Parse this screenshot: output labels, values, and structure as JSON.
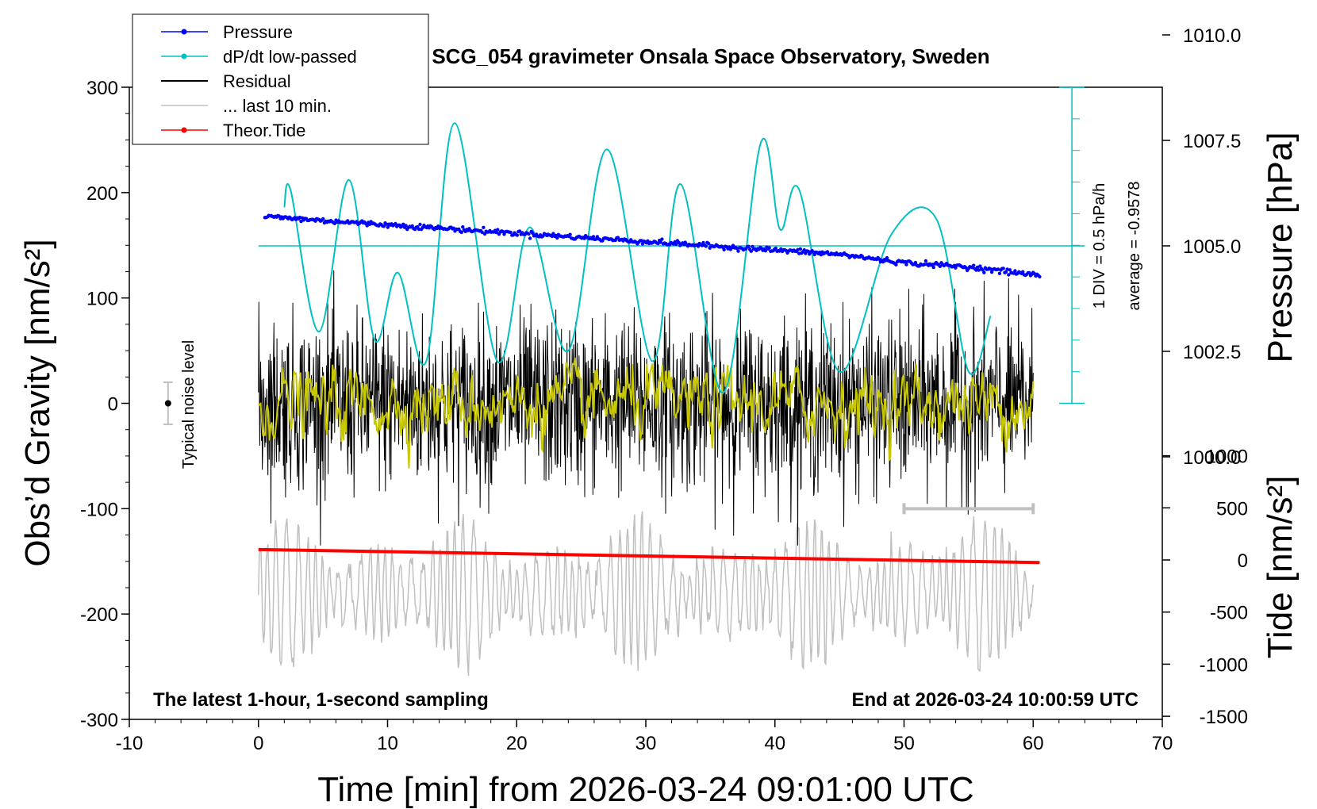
{
  "chart_data": {
    "type": "line",
    "title": "SCG_054 gravimeter Onsala Space Observatory, Sweden",
    "xlabel": "Time [min] from 2026-03-24 09:01:00 UTC",
    "ylabel_left": "Obs’d Gravity [nm/s²]",
    "ylabel_right_top": "Pressure [hPa]",
    "ylabel_right_bottom": "Tide [nm/s²]",
    "xlim": [
      -10,
      70
    ],
    "ylim_left": [
      -300,
      300
    ],
    "x_ticks": [
      "-10",
      "0",
      "10",
      "20",
      "30",
      "40",
      "50",
      "60",
      "70"
    ],
    "y_ticks_left": [
      "300",
      "200",
      "100",
      "0",
      "-100",
      "-200",
      "-300"
    ],
    "pressure_ticks": [
      "1010.0",
      "1007.5",
      "1005.0",
      "1002.5",
      "1000.0"
    ],
    "tide_ticks": [
      "1000",
      "500",
      "0",
      "-500",
      "-1000",
      "-1500"
    ],
    "legend": [
      {
        "label": "Pressure",
        "color": "#0000ff",
        "marker": true
      },
      {
        "label": "dP/dt low-passed",
        "color": "#00c0c0",
        "marker": true
      },
      {
        "label": "Residual",
        "color": "#000000",
        "marker": false
      },
      {
        "label": "... last 10 min.",
        "color": "#c0c0c0",
        "marker": false
      },
      {
        "label": "Theor.Tide",
        "color": "#ff0000",
        "marker": true
      }
    ],
    "legend_position": "top-left",
    "annotations": {
      "bottom_left": "The latest 1-hour, 1-second sampling",
      "bottom_right": "End at 2026-03-24 10:00:59 UTC",
      "noise": "Typical noise level",
      "div": "1 DIV = 0.5 hPa/h",
      "average": "average = -0.9578"
    },
    "pressure_hpa": {
      "x": [
        0.5,
        5,
        10,
        15,
        20,
        25,
        30,
        35,
        40,
        45,
        50,
        55,
        60.5
      ],
      "y": [
        1005.7,
        1005.6,
        1005.5,
        1005.4,
        1005.3,
        1005.2,
        1005.1,
        1005.0,
        1004.9,
        1004.8,
        1004.6,
        1004.5,
        1004.3
      ]
    },
    "dpdt_lowpassed_gravity_units": {
      "x": [
        2,
        2.5,
        4.7,
        7,
        9,
        10.8,
        13,
        15.2,
        18.5,
        21,
        24,
        27,
        30.5,
        32.7,
        36,
        38.9,
        40.4,
        41.9,
        45,
        49,
        52.5,
        55,
        56.7
      ],
      "y": [
        186,
        202,
        68,
        212,
        60,
        124,
        40,
        266,
        40,
        167,
        50,
        241,
        40,
        208,
        10,
        247,
        165,
        202,
        30,
        160,
        175,
        30,
        83
      ]
    },
    "residual_nms2": {
      "x_range": [
        0,
        60
      ],
      "mean": 0,
      "amplitude": 40,
      "max": 130,
      "min": -135
    },
    "residual_smoothed_nms2": {
      "x_range": [
        0,
        60
      ],
      "mean": 0,
      "amplitude": 25
    },
    "last_10_min_gravity_units": {
      "x_range": [
        0,
        60
      ],
      "center": -180,
      "amplitude": 70
    },
    "theor_tide_nms2": {
      "x": [
        0,
        60.5
      ],
      "y": [
        100,
        -25
      ]
    },
    "noise_bar": {
      "x": -7,
      "y": 0,
      "err": 20
    },
    "last10_bar": {
      "x": [
        50,
        60
      ],
      "y": -100
    }
  }
}
